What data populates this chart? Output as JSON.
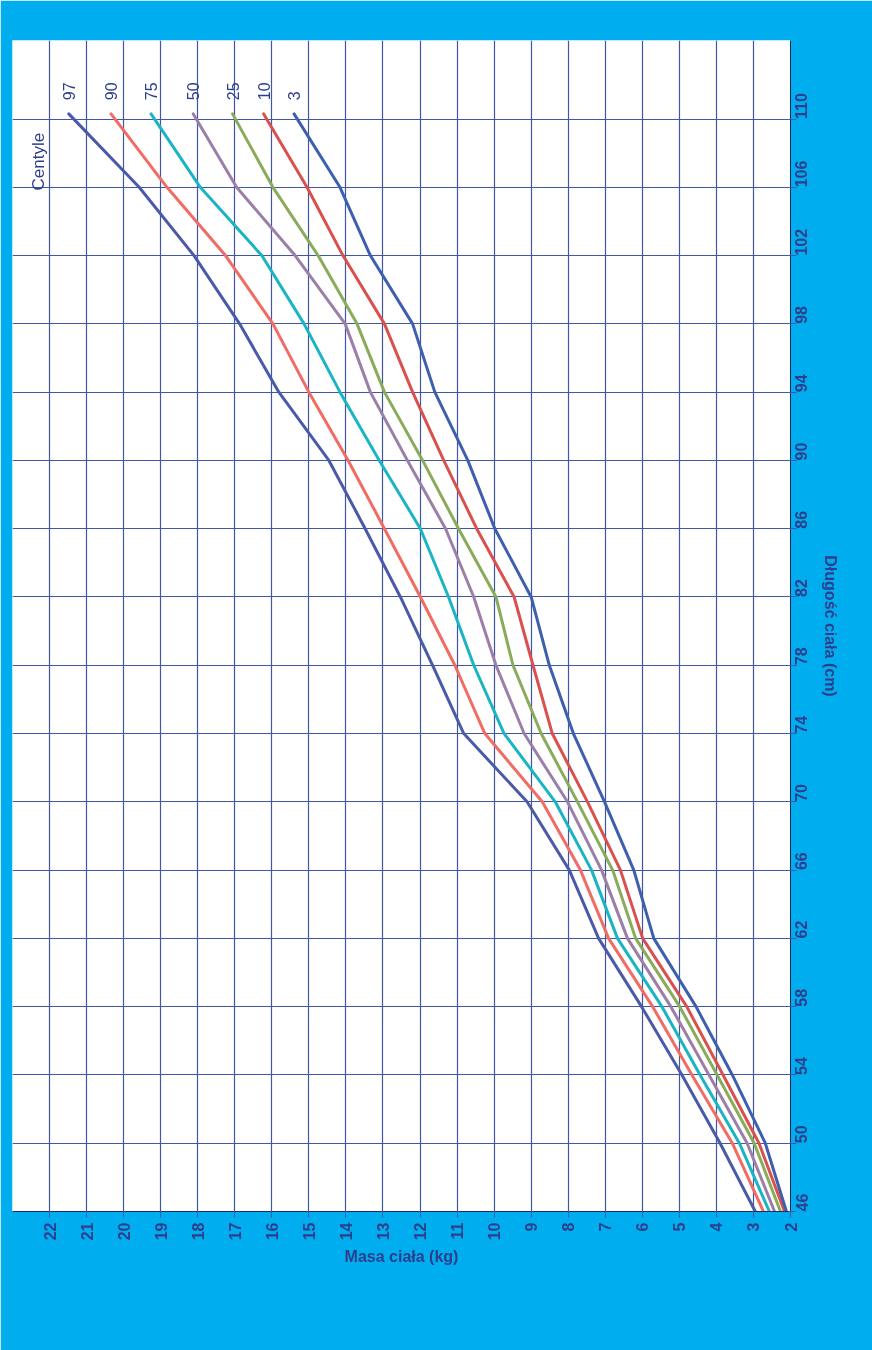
{
  "chart_data": {
    "type": "line",
    "xlabel": "Masa ciała (kg)",
    "ylabel": "Długość ciała (cm)",
    "legend_title": "Centyle",
    "series": [
      {
        "name": "97",
        "color": "#4a5aa8",
        "x": [
          2.95,
          3.9,
          4.93,
          6.02,
          7.18,
          7.97,
          9.11,
          10.82,
          11.66,
          12.53,
          13.48,
          14.46,
          15.81,
          16.87,
          18.1,
          19.58,
          21.48
        ],
        "values": [
          46,
          50,
          54,
          58,
          62,
          66,
          70,
          74,
          78,
          82,
          86,
          90,
          94,
          98,
          102,
          106,
          110.3
        ]
      },
      {
        "name": "90",
        "color": "#f06c64",
        "x": [
          2.73,
          3.57,
          4.66,
          5.72,
          6.91,
          7.67,
          8.7,
          10.25,
          11.06,
          11.99,
          12.96,
          13.94,
          15.0,
          15.97,
          17.25,
          18.83,
          20.34
        ],
        "values": [
          46,
          50,
          54,
          58,
          62,
          66,
          70,
          74,
          78,
          82,
          86,
          90,
          94,
          98,
          102,
          106,
          110.3
        ]
      },
      {
        "name": "75",
        "color": "#1ab4c4",
        "x": [
          2.57,
          3.38,
          4.44,
          5.47,
          6.67,
          7.37,
          8.35,
          9.73,
          10.55,
          11.23,
          11.99,
          13.1,
          14.16,
          15.13,
          16.27,
          17.93,
          19.26
        ],
        "values": [
          46,
          50,
          54,
          58,
          62,
          66,
          70,
          74,
          78,
          82,
          86,
          90,
          94,
          98,
          102,
          106,
          110.3
        ]
      },
      {
        "name": "50",
        "color": "#9b7fa8",
        "x": [
          2.43,
          3.17,
          4.2,
          5.23,
          6.4,
          7.1,
          8.02,
          9.19,
          9.95,
          10.55,
          11.31,
          12.34,
          13.34,
          14.02,
          15.37,
          16.95,
          18.12
        ],
        "values": [
          46,
          50,
          54,
          58,
          62,
          66,
          70,
          74,
          78,
          82,
          86,
          90,
          94,
          98,
          102,
          106,
          110.3
        ]
      },
      {
        "name": "25",
        "color": "#8aab5a",
        "x": [
          2.27,
          2.98,
          3.98,
          4.99,
          6.18,
          6.8,
          7.75,
          8.73,
          9.49,
          9.95,
          10.96,
          11.93,
          12.96,
          13.7,
          14.75,
          15.97,
          17.06
        ],
        "values": [
          46,
          50,
          54,
          58,
          62,
          66,
          70,
          74,
          78,
          82,
          86,
          90,
          94,
          98,
          102,
          106,
          110.3
        ]
      },
      {
        "name": "10",
        "color": "#d9504c",
        "x": [
          2.16,
          2.85,
          3.82,
          4.8,
          5.99,
          6.59,
          7.48,
          8.43,
          8.95,
          9.46,
          10.47,
          11.36,
          12.2,
          12.96,
          14.08,
          15.05,
          16.22
        ],
        "values": [
          46,
          50,
          54,
          58,
          62,
          66,
          70,
          74,
          78,
          82,
          86,
          90,
          94,
          98,
          102,
          106,
          110.3
        ]
      },
      {
        "name": "3",
        "color": "#3e5fae",
        "x": [
          2.11,
          2.68,
          3.57,
          4.55,
          5.69,
          6.23,
          7.02,
          7.86,
          8.51,
          9.0,
          9.98,
          10.71,
          11.6,
          12.2,
          13.34,
          14.16,
          15.4
        ],
        "values": [
          46,
          50,
          54,
          58,
          62,
          66,
          70,
          74,
          78,
          82,
          86,
          90,
          94,
          98,
          102,
          106,
          110.3
        ]
      }
    ],
    "xlim": [
      23,
      2
    ],
    "ylim": [
      46,
      114.6
    ],
    "xticks": [
      2,
      3,
      4,
      5,
      6,
      7,
      8,
      9,
      10,
      11,
      12,
      13,
      14,
      15,
      16,
      17,
      18,
      19,
      20,
      21,
      22
    ],
    "yticks": [
      46,
      50,
      54,
      58,
      62,
      66,
      70,
      74,
      78,
      82,
      86,
      90,
      94,
      98,
      102,
      106,
      110
    ],
    "grid": true
  }
}
